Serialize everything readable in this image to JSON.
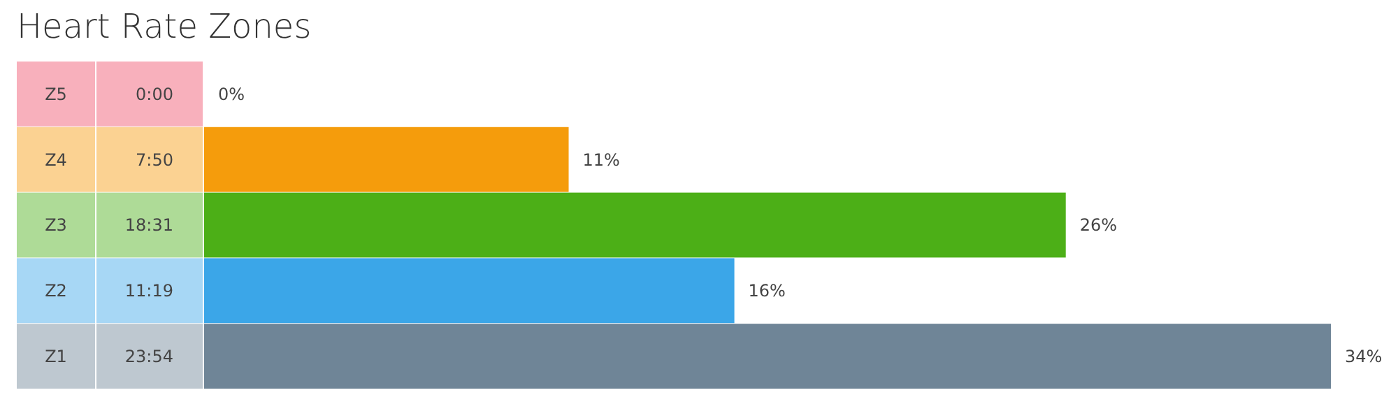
{
  "chart_data": {
    "type": "bar",
    "orientation": "horizontal",
    "title": "Heart Rate Zones",
    "categories": [
      "Z5",
      "Z4",
      "Z3",
      "Z2",
      "Z1"
    ],
    "values": [
      0,
      11,
      26,
      16,
      34
    ],
    "colors": [
      "#f0506a",
      "#f59c0c",
      "#4caf17",
      "#3ba6e8",
      "#6f8597"
    ],
    "value_labels": [
      "0%",
      "11%",
      "26%",
      "16%",
      "34%"
    ],
    "annotations": [
      "0:00",
      "7:50",
      "18:31",
      "11:19",
      "23:54"
    ]
  }
}
